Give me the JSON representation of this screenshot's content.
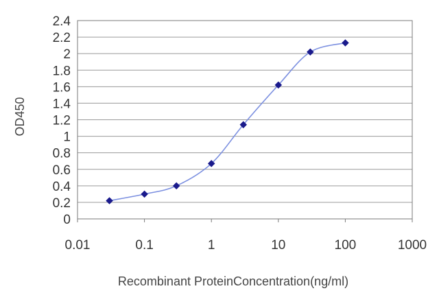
{
  "chart_data": {
    "type": "line",
    "x_scale": "log",
    "xlabel": "Recombinant ProteinConcentration(ng/ml)",
    "ylabel": "OD450",
    "xlim": [
      0.01,
      1000
    ],
    "ylim": [
      0,
      2.4
    ],
    "x_ticks": [
      {
        "value": 0.01,
        "label": "0.01"
      },
      {
        "value": 0.1,
        "label": "0.1"
      },
      {
        "value": 1,
        "label": "1"
      },
      {
        "value": 10,
        "label": "10"
      },
      {
        "value": 100,
        "label": "100"
      },
      {
        "value": 1000,
        "label": "1000"
      }
    ],
    "y_ticks": [
      {
        "value": 0,
        "label": "0"
      },
      {
        "value": 0.2,
        "label": "0.2"
      },
      {
        "value": 0.4,
        "label": "0.4"
      },
      {
        "value": 0.6,
        "label": "0.6"
      },
      {
        "value": 0.8,
        "label": "0.8"
      },
      {
        "value": 1,
        "label": "1"
      },
      {
        "value": 1.2,
        "label": "1.2"
      },
      {
        "value": 1.4,
        "label": "1.4"
      },
      {
        "value": 1.6,
        "label": "1.6"
      },
      {
        "value": 1.8,
        "label": "1.8"
      },
      {
        "value": 2,
        "label": "2"
      },
      {
        "value": 2.2,
        "label": "2.2"
      },
      {
        "value": 2.4,
        "label": "2.4"
      }
    ],
    "grid": "horizontal",
    "series": [
      {
        "color": "#1a1a8c",
        "line_color": "#7b8fe0",
        "marker": "diamond",
        "x": [
          0.03,
          0.1,
          0.3,
          1,
          3,
          10,
          30,
          100
        ],
        "y": [
          0.22,
          0.3,
          0.4,
          0.67,
          1.14,
          1.62,
          2.02,
          2.13
        ]
      }
    ]
  }
}
